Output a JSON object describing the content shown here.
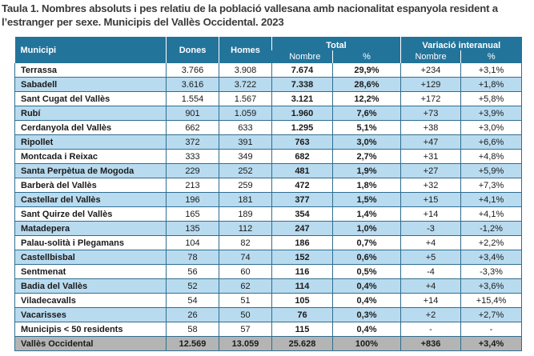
{
  "title": "Taula 1. Nombres absoluts i pes relatiu de la població vallesana amb nacionalitat espanyola resident a l’estranger per sexe. Municipis del Vallès Occidental. 2023",
  "header": {
    "municipi": "Municipi",
    "dones": "Dones",
    "homes": "Homes",
    "total": "Total",
    "variacio": "Variació interanual",
    "nombre": "Nombre",
    "pct": "%",
    "var_nombre": "Nombre",
    "var_pct": "%"
  },
  "rows": [
    {
      "municipi": "Terrassa",
      "dones": "3.766",
      "homes": "3.908",
      "total": "7.674",
      "pct": "29,9%",
      "var_nombre": "+234",
      "var_pct": "+3,1%"
    },
    {
      "municipi": "Sabadell",
      "dones": "3.616",
      "homes": "3.722",
      "total": "7.338",
      "pct": "28,6%",
      "var_nombre": "+129",
      "var_pct": "+1,8%"
    },
    {
      "municipi": "Sant Cugat del Vallès",
      "dones": "1.554",
      "homes": "1.567",
      "total": "3.121",
      "pct": "12,2%",
      "var_nombre": "+172",
      "var_pct": "+5,8%"
    },
    {
      "municipi": "Rubí",
      "dones": "901",
      "homes": "1.059",
      "total": "1.960",
      "pct": "7,6%",
      "var_nombre": "+73",
      "var_pct": "+3,9%"
    },
    {
      "municipi": "Cerdanyola del Vallès",
      "dones": "662",
      "homes": "633",
      "total": "1.295",
      "pct": "5,1%",
      "var_nombre": "+38",
      "var_pct": "+3,0%"
    },
    {
      "municipi": "Ripollet",
      "dones": "372",
      "homes": "391",
      "total": "763",
      "pct": "3,0%",
      "var_nombre": "+47",
      "var_pct": "+6,6%"
    },
    {
      "municipi": "Montcada i Reixac",
      "dones": "333",
      "homes": "349",
      "total": "682",
      "pct": "2,7%",
      "var_nombre": "+31",
      "var_pct": "+4,8%"
    },
    {
      "municipi": "Santa Perpètua de Mogoda",
      "dones": "229",
      "homes": "252",
      "total": "481",
      "pct": "1,9%",
      "var_nombre": "+27",
      "var_pct": "+5,9%"
    },
    {
      "municipi": "Barberà del Vallès",
      "dones": "213",
      "homes": "259",
      "total": "472",
      "pct": "1,8%",
      "var_nombre": "+32",
      "var_pct": "+7,3%"
    },
    {
      "municipi": "Castellar del Vallès",
      "dones": "196",
      "homes": "181",
      "total": "377",
      "pct": "1,5%",
      "var_nombre": "+15",
      "var_pct": "+4,1%"
    },
    {
      "municipi": "Sant Quirze del Vallès",
      "dones": "165",
      "homes": "189",
      "total": "354",
      "pct": "1,4%",
      "var_nombre": "+14",
      "var_pct": "+4,1%"
    },
    {
      "municipi": "Matadepera",
      "dones": "135",
      "homes": "112",
      "total": "247",
      "pct": "1,0%",
      "var_nombre": "-3",
      "var_pct": "-1,2%"
    },
    {
      "municipi": "Palau-solità i Plegamans",
      "dones": "104",
      "homes": "82",
      "total": "186",
      "pct": "0,7%",
      "var_nombre": "+4",
      "var_pct": "+2,2%"
    },
    {
      "municipi": "Castellbisbal",
      "dones": "78",
      "homes": "74",
      "total": "152",
      "pct": "0,6%",
      "var_nombre": "+5",
      "var_pct": "+3,4%"
    },
    {
      "municipi": "Sentmenat",
      "dones": "56",
      "homes": "60",
      "total": "116",
      "pct": "0,5%",
      "var_nombre": "-4",
      "var_pct": "-3,3%"
    },
    {
      "municipi": "Badia del Vallès",
      "dones": "52",
      "homes": "62",
      "total": "114",
      "pct": "0,4%",
      "var_nombre": "+4",
      "var_pct": "+3,6%"
    },
    {
      "municipi": "Viladecavalls",
      "dones": "54",
      "homes": "51",
      "total": "105",
      "pct": "0,4%",
      "var_nombre": "+14",
      "var_pct": "+15,4%"
    },
    {
      "municipi": "Vacarisses",
      "dones": "26",
      "homes": "50",
      "total": "76",
      "pct": "0,3%",
      "var_nombre": "+2",
      "var_pct": "+2,7%"
    },
    {
      "municipi": "Municipis < 50 residents",
      "dones": "58",
      "homes": "57",
      "total": "115",
      "pct": "0,4%",
      "var_nombre": "-",
      "var_pct": "-"
    }
  ],
  "total_row": {
    "municipi": "Vallès Occidental",
    "dones": "12.569",
    "homes": "13.059",
    "total": "25.628",
    "pct": "100%",
    "var_nombre": "+836",
    "var_pct": "+3,4%"
  },
  "colors": {
    "header_bg": "#23749b",
    "alt_row_bg": "#b9dbef",
    "total_row_bg": "#b4b4b4",
    "border": "#2f6d8f"
  }
}
